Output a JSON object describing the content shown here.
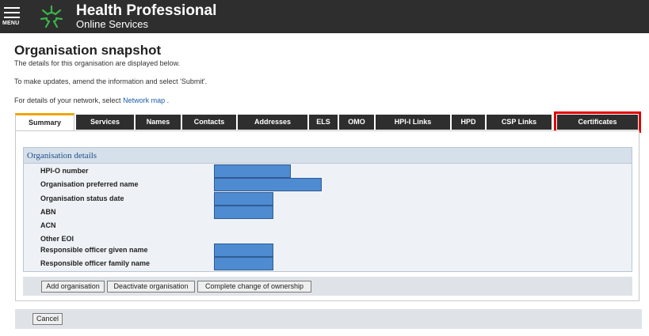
{
  "header": {
    "menu_label": "MENU",
    "brand_line1": "Health Professional",
    "brand_line2": "Online Services",
    "colors": {
      "bar": "#2e2e2e",
      "logo_green": "#3bb54a"
    },
    "icons": [
      "hamburger-menu-icon",
      "hpos-logo-icon"
    ]
  },
  "page": {
    "title": "Organisation snapshot",
    "intro1": "The details for this organisation are displayed below.",
    "intro2": "To make updates, amend the information and select 'Submit'.",
    "intro3_prefix": "For details of your network, select ",
    "intro3_link": "Network map",
    "intro3_suffix": " ."
  },
  "tabs": [
    {
      "label": "Summary",
      "active": true
    },
    {
      "label": "Services"
    },
    {
      "label": "Names"
    },
    {
      "label": "Contacts"
    },
    {
      "label": "Addresses"
    },
    {
      "label": "ELS"
    },
    {
      "label": "OMO"
    },
    {
      "label": "HPI-I Links"
    },
    {
      "label": "HPD"
    },
    {
      "label": "CSP Links"
    },
    {
      "label": "Certificates",
      "highlighted": true
    }
  ],
  "details": {
    "heading": "Organisation details",
    "fields": [
      {
        "label": "HPI-O number",
        "redacted": true
      },
      {
        "label": "Organisation preferred name",
        "redacted": true
      },
      {
        "label": "Organisation status date",
        "redacted": true
      },
      {
        "label": "ABN",
        "redacted": true
      },
      {
        "label": "ACN",
        "redacted": false
      },
      {
        "label": "Other EOI",
        "redacted": false
      },
      {
        "label": "Responsible officer given name",
        "redacted": true
      },
      {
        "label": "Responsible officer family name",
        "redacted": true
      }
    ]
  },
  "actions": {
    "add": "Add organisation",
    "deactivate": "Deactivate organisation",
    "change_owner": "Complete change of ownership"
  },
  "footer": {
    "cancel": "Cancel"
  }
}
